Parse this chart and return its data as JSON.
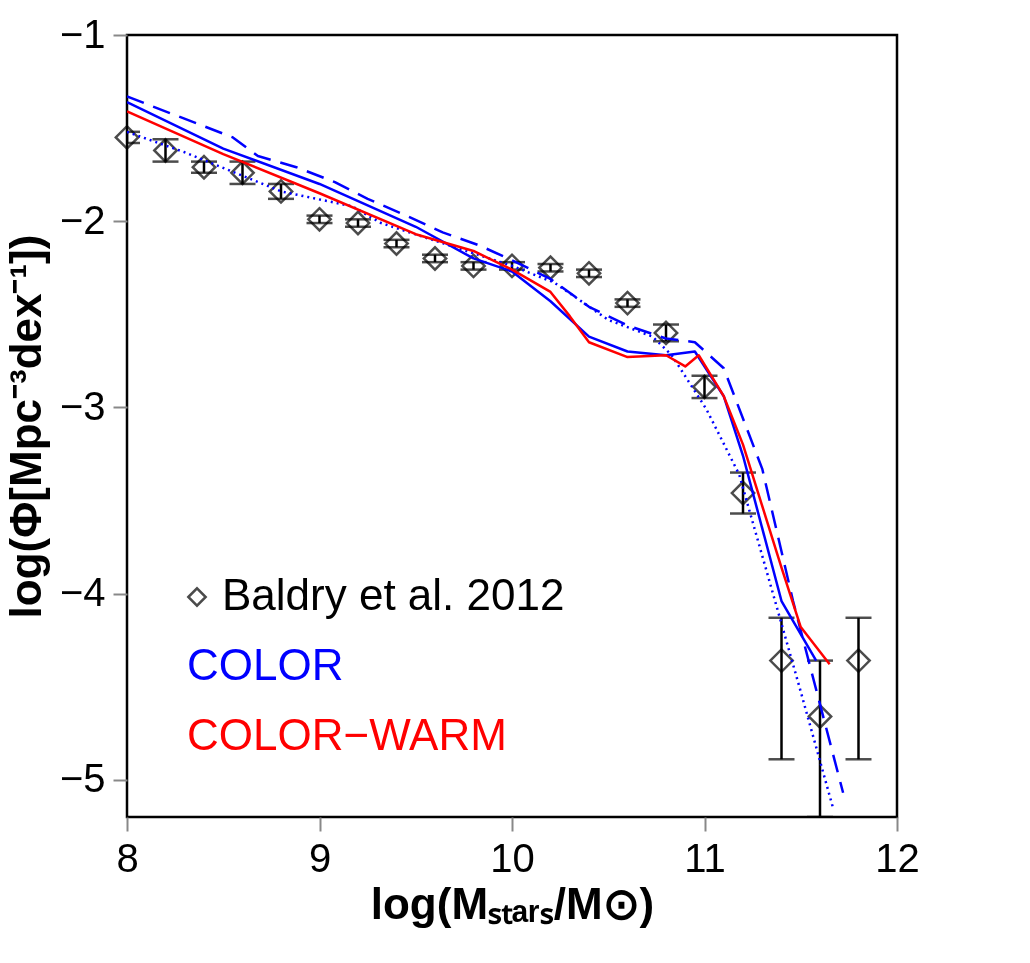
{
  "chart_data": {
    "type": "line",
    "xlabel": "log(Mₛₜₐᵣₛ/M⊙)",
    "ylabel": "log(Φ[Mpc⁻³dex⁻¹])",
    "xlim": [
      8,
      12
    ],
    "ylim": [
      -5.2,
      -1
    ],
    "xticks": [
      8,
      9,
      10,
      11,
      12
    ],
    "yticks": [
      -5,
      -4,
      -3,
      -2,
      -1
    ],
    "grid": false,
    "legend": "bottom left",
    "series": [
      {
        "name": "Baldry et al. 2012",
        "type": "scatter",
        "marker": "diamond",
        "color": "#000000",
        "x": [
          8.0,
          8.2,
          8.4,
          8.6,
          8.8,
          9.0,
          9.2,
          9.4,
          9.6,
          9.8,
          10.0,
          10.2,
          10.4,
          10.6,
          10.8,
          11.0,
          11.2,
          11.4,
          11.6,
          11.8
        ],
        "values": [
          -1.55,
          -1.62,
          -1.71,
          -1.74,
          -1.84,
          -1.99,
          -2.01,
          -2.12,
          -2.2,
          -2.24,
          -2.24,
          -2.25,
          -2.28,
          -2.44,
          -2.6,
          -2.89,
          -3.46,
          -4.36,
          -4.66,
          -4.36
        ],
        "errors": [
          0.03,
          0.06,
          0.03,
          0.06,
          0.04,
          0.02,
          0.02,
          0.02,
          0.02,
          0.02,
          0.02,
          0.02,
          0.02,
          0.02,
          0.045,
          0.06,
          0.11,
          [
            -4.89,
            -4.13
          ],
          [
            -5.2,
            -4.36
          ],
          [
            -4.89,
            -4.13
          ]
        ]
      },
      {
        "name": "COLOR",
        "line_style": "solid",
        "color": "#0000ff",
        "x": [
          8.0,
          8.5,
          9.0,
          9.5,
          9.8,
          10.0,
          10.2,
          10.4,
          10.6,
          10.8,
          10.95,
          11.1,
          11.2,
          11.4,
          11.58
        ],
        "values": [
          -1.36,
          -1.61,
          -1.8,
          -2.03,
          -2.2,
          -2.27,
          -2.43,
          -2.62,
          -2.7,
          -2.72,
          -2.7,
          -2.94,
          -3.26,
          -4.04,
          -4.36
        ]
      },
      {
        "line_style": "dashed",
        "color": "#0000ff",
        "x": [
          8.0,
          8.55,
          8.68,
          8.88,
          9.08,
          9.25,
          9.45,
          9.64,
          9.83,
          10.0,
          10.2,
          10.4,
          10.6,
          10.8,
          10.95,
          11.1,
          11.3,
          11.46,
          11.72
        ],
        "values": [
          -1.33,
          -1.55,
          -1.65,
          -1.71,
          -1.79,
          -1.88,
          -1.97,
          -2.06,
          -2.13,
          -2.21,
          -2.31,
          -2.46,
          -2.56,
          -2.63,
          -2.65,
          -2.79,
          -3.33,
          -4.04,
          -5.07
        ]
      },
      {
        "line_style": "dotted",
        "color": "#0000ff",
        "x": [
          8.0,
          8.3,
          8.8,
          9.17,
          9.32,
          10.0,
          10.22,
          10.5,
          10.73,
          10.83,
          11.01,
          11.18,
          11.49,
          11.67
        ],
        "values": [
          -1.52,
          -1.63,
          -1.84,
          -1.92,
          -2.01,
          -2.24,
          -2.33,
          -2.53,
          -2.62,
          -2.72,
          -3.01,
          -3.36,
          -4.49,
          -5.16
        ]
      },
      {
        "name": "COLOR−WARM",
        "line_style": "solid",
        "color": "#ff0000",
        "x": [
          8.0,
          8.5,
          9.0,
          9.5,
          9.8,
          10.0,
          10.2,
          10.3,
          10.4,
          10.6,
          10.8,
          10.9,
          10.97,
          11.1,
          11.2,
          11.4,
          11.5,
          11.65
        ],
        "values": [
          -1.41,
          -1.64,
          -1.85,
          -2.07,
          -2.16,
          -2.26,
          -2.38,
          -2.51,
          -2.65,
          -2.73,
          -2.72,
          -2.78,
          -2.72,
          -2.94,
          -3.2,
          -3.86,
          -4.18,
          -4.38
        ]
      }
    ]
  }
}
